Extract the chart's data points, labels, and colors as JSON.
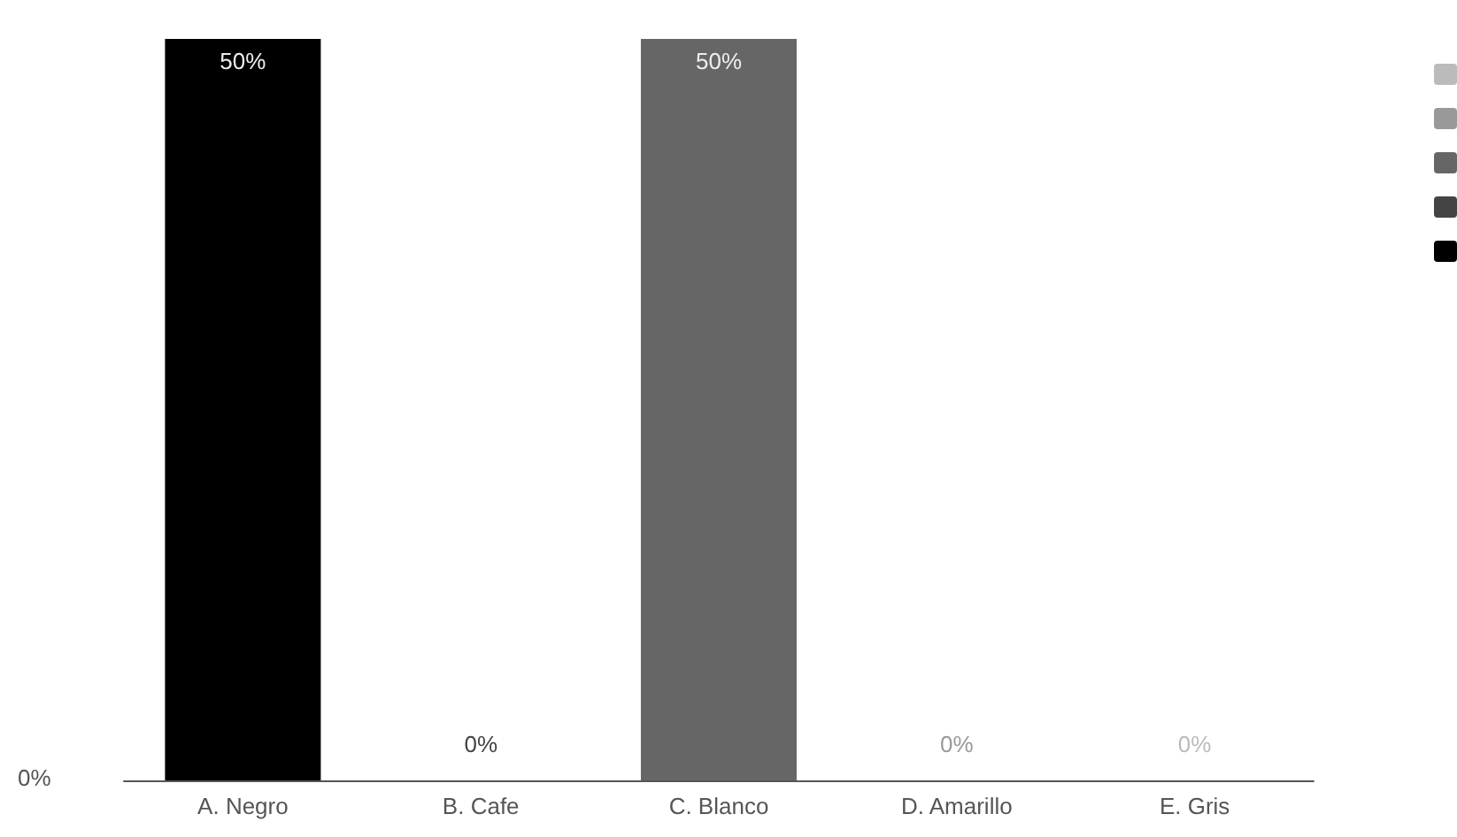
{
  "chart_data": {
    "type": "bar",
    "categories": [
      "A. Negro",
      "B. Cafe",
      "C. Blanco",
      "D. Amarillo",
      "E. Gris"
    ],
    "values": [
      50,
      0,
      50,
      0,
      0
    ],
    "annotations": [
      "0%"
    ],
    "value_labels": [
      "50%",
      "0%",
      "50%",
      "0%",
      "0%"
    ],
    "colors": [
      "#000000",
      "#444444",
      "#666666",
      "#999999",
      "#bbbbbb"
    ],
    "grid": false
  }
}
